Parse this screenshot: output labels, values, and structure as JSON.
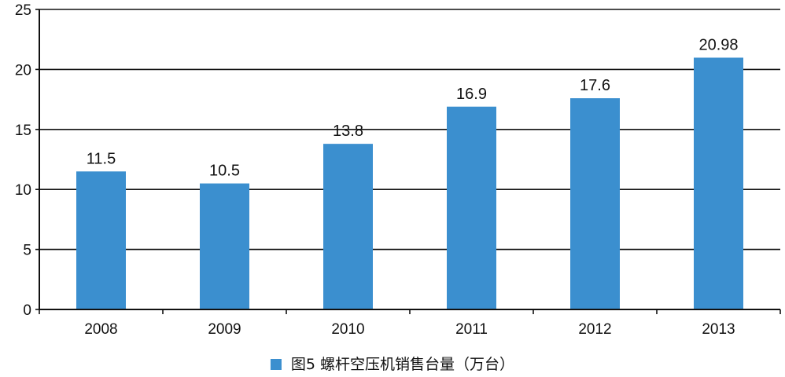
{
  "chart_data": {
    "type": "bar",
    "categories": [
      "2008",
      "2009",
      "2010",
      "2011",
      "2012",
      "2013"
    ],
    "series": [
      {
        "name": "图5  螺杆空压机销售台量（万台）",
        "values": [
          11.5,
          10.5,
          13.8,
          16.9,
          17.6,
          20.98
        ],
        "labels": [
          "11.5",
          "10.5",
          "13.8",
          "16.9",
          "17.6",
          "20.98"
        ],
        "color": "#3b8fcf"
      }
    ],
    "ylim": [
      0,
      25
    ],
    "yticks": [
      "0",
      "5",
      "10",
      "15",
      "20",
      "25"
    ],
    "grid": true,
    "legend_position": "bottom-center"
  }
}
